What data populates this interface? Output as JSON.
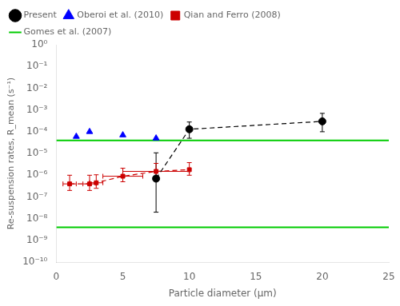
{
  "chart_data": {
    "type": "scatter",
    "xlabel": "Particle diameter (μm)",
    "ylabel": "Re-suspension rates, R_mean (s⁻¹)",
    "log": "y",
    "grid": false,
    "legend": "upper left",
    "xlim": [
      0,
      25
    ],
    "xticks": [
      0,
      5,
      10,
      15,
      20,
      25
    ],
    "ylim": [
      1e-10,
      1
    ],
    "yticks": [
      {
        "value": 1e-10,
        "label": "10⁻¹⁰"
      },
      {
        "value": 1e-09,
        "label": "10⁻⁹"
      },
      {
        "value": 1e-08,
        "label": "10⁻⁸"
      },
      {
        "value": 1e-07,
        "label": "10⁻⁷"
      },
      {
        "value": 1e-06,
        "label": "10⁻⁶"
      },
      {
        "value": 1e-05,
        "label": "10⁻⁵"
      },
      {
        "value": 0.0001,
        "label": "10⁻⁴"
      },
      {
        "value": 0.001,
        "label": "10⁻³"
      },
      {
        "value": 0.01,
        "label": "10⁻²"
      },
      {
        "value": 0.1,
        "label": "10⁻¹"
      },
      {
        "value": 1,
        "label": "10⁰"
      }
    ],
    "series": [
      {
        "name": "Present",
        "color": "#000000",
        "marker": "circle",
        "line_style": "dashed",
        "x": [
          7.5,
          10,
          20
        ],
        "values": [
          7e-07,
          0.00013,
          0.0003
        ],
        "yerr_low": [
          6.8e-07,
          8e-05,
          0.0002
        ],
        "yerr_high": [
          1e-05,
          0.00015,
          0.0004
        ]
      },
      {
        "name": "Oberoi et al. (2010)",
        "color": "#0000ff",
        "marker": "triangle",
        "line_style": "none",
        "x": [
          1.5,
          2.5,
          5,
          7.5
        ],
        "values": [
          6e-05,
          0.0001,
          7e-05,
          5e-05
        ]
      },
      {
        "name": "Qian and Ferro (2008)",
        "color": "#cc0000",
        "marker": "square",
        "line_style": "dashed",
        "x": [
          1.0,
          2.5,
          3.0,
          5.0,
          7.5,
          10.0
        ],
        "values": [
          4e-07,
          4e-07,
          4.5e-07,
          9e-07,
          1.5e-06,
          1.8e-06
        ],
        "xerr": [
          0.5,
          0.5,
          0.5,
          1.5,
          2.5,
          0
        ],
        "yerr_low": [
          2e-07,
          2e-07,
          2e-07,
          4e-07,
          8e-07,
          8e-07
        ],
        "yerr_high": [
          6e-07,
          6e-07,
          6e-07,
          1.2e-06,
          2e-06,
          2e-06
        ]
      },
      {
        "name": "Gomes et al. (2007)",
        "color": "#00cc00",
        "type": "hline",
        "line_style": "solid",
        "values": [
          4e-05,
          4e-09
        ]
      }
    ]
  }
}
